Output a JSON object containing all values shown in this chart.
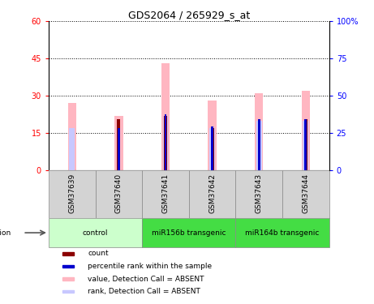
{
  "title": "GDS2064 / 265929_s_at",
  "samples": [
    "GSM37639",
    "GSM37640",
    "GSM37641",
    "GSM37642",
    "GSM37643",
    "GSM37644"
  ],
  "value_absent": [
    27.0,
    22.0,
    43.0,
    28.0,
    31.0,
    32.0
  ],
  "rank_absent": [
    17.0,
    0.0,
    22.0,
    17.0,
    20.0,
    20.0
  ],
  "count": [
    0.0,
    20.5,
    22.0,
    17.0,
    0.0,
    20.5
  ],
  "percentile_rank": [
    0.0,
    17.0,
    22.5,
    17.5,
    20.5,
    20.5
  ],
  "ylim_left": [
    0,
    60
  ],
  "ylim_right": [
    0,
    100
  ],
  "yticks_left": [
    0,
    15,
    30,
    45,
    60
  ],
  "ytick_labels_left": [
    "0",
    "15",
    "30",
    "45",
    "60"
  ],
  "yticks_right": [
    0,
    25,
    50,
    75,
    100
  ],
  "ytick_labels_right": [
    "0",
    "25",
    "50",
    "75",
    "100%"
  ],
  "color_value_absent": "#ffb6c1",
  "color_rank_absent": "#c8c8ff",
  "color_count": "#8b0000",
  "color_percentile": "#0000cd",
  "legend_items": [
    {
      "label": "count",
      "color": "#8b0000"
    },
    {
      "label": "percentile rank within the sample",
      "color": "#0000cd"
    },
    {
      "label": "value, Detection Call = ABSENT",
      "color": "#ffb6c1"
    },
    {
      "label": "rank, Detection Call = ABSENT",
      "color": "#c8c8ff"
    }
  ],
  "groups_info": [
    {
      "label": "control",
      "start": 0,
      "end": 1,
      "color": "#ccffcc"
    },
    {
      "label": "miR156b transgenic",
      "start": 2,
      "end": 3,
      "color": "#44dd44"
    },
    {
      "label": "miR164b transgenic",
      "start": 4,
      "end": 5,
      "color": "#44dd44"
    }
  ]
}
